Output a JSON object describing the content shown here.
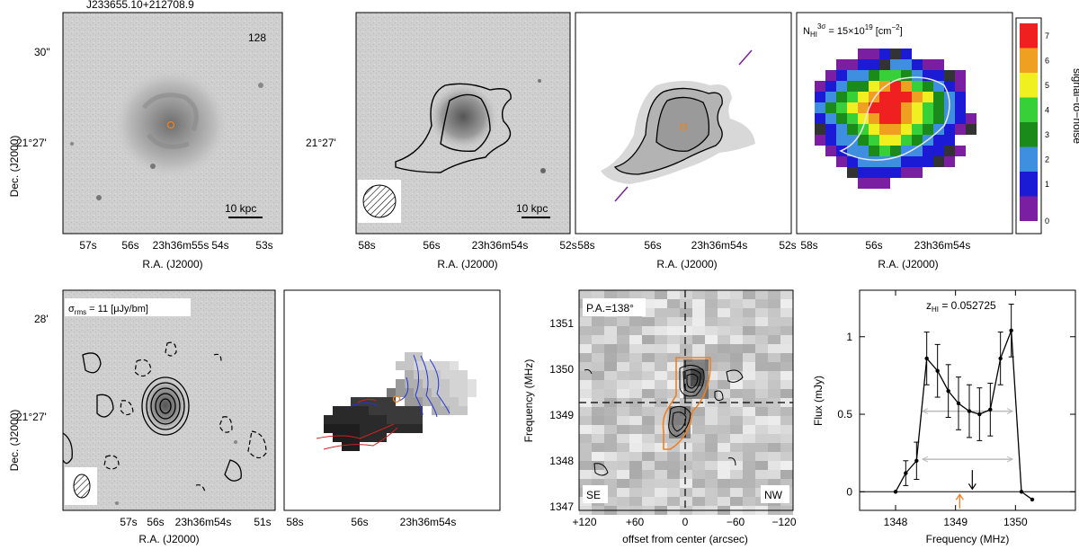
{
  "object_id": "J233655.10+212708.9",
  "panel_a": {
    "number": "128",
    "dec_top": "30\"",
    "dec_mid": "21°27'",
    "scalebar": "10 kpc",
    "ra_ticks": [
      "57s",
      "56s",
      "23h36m55s",
      "54s",
      "53s"
    ],
    "xlabel": "R.A. (J2000)",
    "ylabel": "Dec. (J2000)"
  },
  "panel_b": {
    "dec_mid": "21°27'",
    "scalebar": "10 kpc",
    "ra_ticks": [
      "58s",
      "56s",
      "23h36m54s",
      "52s"
    ],
    "xlabel": "R.A. (J2000)"
  },
  "panel_c": {
    "ra_ticks": [
      "58s",
      "56s",
      "23h36m54s",
      "52s"
    ],
    "xlabel": "R.A. (J2000)"
  },
  "panel_d": {
    "label": "NHI3σ = 15×10^19 [cm^-2]",
    "label_main": "N",
    "label_sub": "HI",
    "label_sup": "3σ",
    "label_rest": " = 15×10",
    "label_exp": "19",
    "label_unit": " [cm",
    "label_unit_exp": "−2",
    "label_close": "]",
    "ra_ticks": [
      "58s",
      "56s",
      "23h36m54s"
    ],
    "xlabel": "R.A. (J2000)",
    "colorbar_label": "signal−to−noise",
    "colorbar_ticks": [
      "0",
      "1",
      "2",
      "3",
      "4",
      "5",
      "6",
      "7"
    ],
    "colorbar_colors": [
      "#7b1fa2",
      "#1b1bd6",
      "#3f8fe0",
      "#1a8a1a",
      "#38d038",
      "#f0f020",
      "#f0a020",
      "#f02020"
    ]
  },
  "panel_e": {
    "sigma_label": "σrms = 11 [μJy/bm]",
    "sigma_main": "σ",
    "sigma_sub": "rms",
    "sigma_rest": " = 11 [μJy/bm]",
    "dec_top": "28'",
    "dec_mid": "21°27'",
    "ra_ticks": [
      "57s",
      "56s",
      "23h36m54s",
      "51s"
    ],
    "xlabel": "R.A. (J2000)",
    "ylabel": "Dec. (J2000)"
  },
  "panel_f": {
    "ra_ticks": [
      "58s",
      "56s",
      "23h36m54s"
    ]
  },
  "panel_g": {
    "pa_label": "P.A.=138°",
    "se": "SE",
    "nw": "NW",
    "y_ticks": [
      "1351",
      "1350",
      "1349",
      "1348",
      "1347"
    ],
    "x_ticks": [
      "+120",
      "+60",
      "0",
      "−60",
      "−120"
    ],
    "ylabel": "Frequency (MHz)",
    "xlabel": "offset from center (arcsec)"
  },
  "chart_data": {
    "type": "line",
    "title": "zHI = 0.052725",
    "title_main": "z",
    "title_sub": "HI",
    "title_rest": " = 0.052725",
    "xlabel": "Frequency (MHz)",
    "ylabel": "Flux (mJy)",
    "xlim": [
      1347.4,
      1351.0
    ],
    "ylim": [
      -0.12,
      1.3
    ],
    "x_ticks": [
      "1348",
      "1349",
      "1350"
    ],
    "y_ticks": [
      "0",
      "0.5",
      "1"
    ],
    "x": [
      1348.0,
      1348.17,
      1348.35,
      1348.52,
      1348.7,
      1348.88,
      1349.05,
      1349.23,
      1349.4,
      1349.58,
      1349.75,
      1349.93,
      1350.1,
      1350.28
    ],
    "y": [
      0.0,
      0.12,
      0.2,
      0.86,
      0.78,
      0.65,
      0.57,
      0.52,
      0.5,
      0.53,
      0.86,
      1.04,
      0.0,
      -0.05
    ],
    "err": [
      0,
      0.08,
      0.12,
      0.17,
      0.17,
      0.17,
      0.17,
      0.17,
      0.17,
      0.17,
      0.17,
      0.17,
      0,
      0
    ],
    "w50": [
      1348.45,
      1349.95
    ],
    "w50_level": 0.52,
    "w20": [
      1348.45,
      1349.95
    ],
    "w20_level": 0.21,
    "opt_freq_marker": 1349.07,
    "hi_freq_marker": 1349.28
  }
}
